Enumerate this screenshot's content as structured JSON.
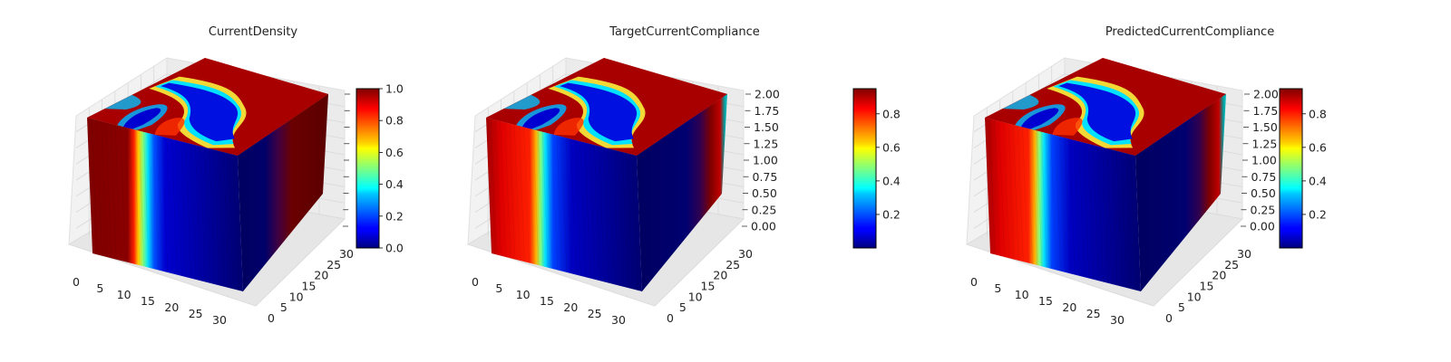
{
  "colormap": "jet",
  "chart_data": [
    {
      "type": "3d-voxel",
      "title": "CurrentDensity",
      "x_ticks": [
        "0",
        "5",
        "10",
        "15",
        "20",
        "25",
        "30"
      ],
      "y_ticks": [
        "0",
        "5",
        "10",
        "15",
        "20",
        "25",
        "30"
      ],
      "z_ticks": [],
      "xlim": [
        0,
        32
      ],
      "ylim": [
        0,
        32
      ],
      "colorbar": {
        "min": 0.0,
        "max": 1.0,
        "ticks": [
          "0.0",
          "0.2",
          "0.4",
          "0.6",
          "0.8",
          "1.0"
        ]
      }
    },
    {
      "type": "3d-voxel",
      "title": "TargetCurrentCompliance",
      "x_ticks": [
        "0",
        "5",
        "10",
        "15",
        "20",
        "25",
        "30"
      ],
      "y_ticks": [
        "0",
        "5",
        "10",
        "15",
        "20",
        "25",
        "30"
      ],
      "z_ticks": [
        "0.00",
        "0.25",
        "0.50",
        "0.75",
        "1.00",
        "1.25",
        "1.50",
        "1.75",
        "2.00"
      ],
      "xlim": [
        0,
        32
      ],
      "ylim": [
        0,
        32
      ],
      "zlim": [
        0,
        2
      ],
      "colorbar": {
        "min": 0.0,
        "max": 0.95,
        "ticks": [
          "0.2",
          "0.4",
          "0.6",
          "0.8"
        ]
      }
    },
    {
      "type": "3d-voxel",
      "title": "PredictedCurrentCompliance",
      "x_ticks": [
        "0",
        "5",
        "10",
        "15",
        "20",
        "25",
        "30"
      ],
      "y_ticks": [
        "0",
        "5",
        "10",
        "15",
        "20",
        "25",
        "30"
      ],
      "z_ticks": [
        "0.00",
        "0.25",
        "0.50",
        "0.75",
        "1.00",
        "1.25",
        "1.50",
        "1.75",
        "2.00"
      ],
      "xlim": [
        0,
        32
      ],
      "ylim": [
        0,
        32
      ],
      "zlim": [
        0,
        2
      ],
      "colorbar": {
        "min": 0.0,
        "max": 0.95,
        "ticks": [
          "0.2",
          "0.4",
          "0.6",
          "0.8"
        ]
      }
    }
  ]
}
